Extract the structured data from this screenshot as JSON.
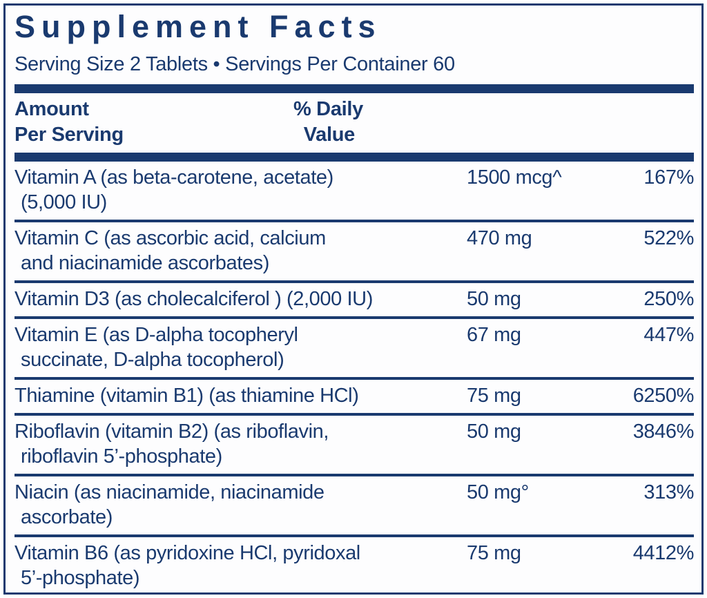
{
  "label": {
    "title": "Supplement Facts",
    "serving_line": "Serving Size 2 Tablets • Servings Per Container 60",
    "columns": {
      "amount_line1": "Amount",
      "amount_line2": "Per Serving",
      "dv_line1": "% Daily",
      "dv_line2": "Value"
    },
    "rows": [
      {
        "name_line1": "Vitamin A (as beta-carotene, acetate)",
        "name_line2": "(5,000 IU)",
        "amount": "1500 mcg^",
        "dv": "167%"
      },
      {
        "name_line1": "Vitamin C (as ascorbic acid, calcium",
        "name_line2": "and niacinamide ascorbates)",
        "amount": "470 mg",
        "dv": "522%"
      },
      {
        "name_line1": "Vitamin D3 (as cholecalciferol ) (2,000 IU)",
        "name_line2": "",
        "amount": "50 mg",
        "dv": "250%"
      },
      {
        "name_line1": "Vitamin E (as D-alpha tocopheryl",
        "name_line2": "succinate, D-alpha tocopherol)",
        "amount": "67 mg",
        "dv": "447%"
      },
      {
        "name_line1": "Thiamine (vitamin B1) (as thiamine HCl)",
        "name_line2": "",
        "amount": "75 mg",
        "dv": "6250%"
      },
      {
        "name_line1": "Riboflavin (vitamin B2) (as riboflavin,",
        "name_line2": "riboflavin 5’-phosphate)",
        "amount": "50 mg",
        "dv": "3846%"
      },
      {
        "name_line1": "Niacin (as niacinamide, niacinamide",
        "name_line2": "ascorbate)",
        "amount": "50 mg°",
        "dv": "313%"
      },
      {
        "name_line1": "Vitamin B6 (as pyridoxine HCl, pyridoxal",
        "name_line2": "5’-phosphate)",
        "amount": "75 mg",
        "dv": "4412%"
      }
    ],
    "colors": {
      "ink": "#1a3a6f",
      "background": "#fdfdfe"
    }
  }
}
